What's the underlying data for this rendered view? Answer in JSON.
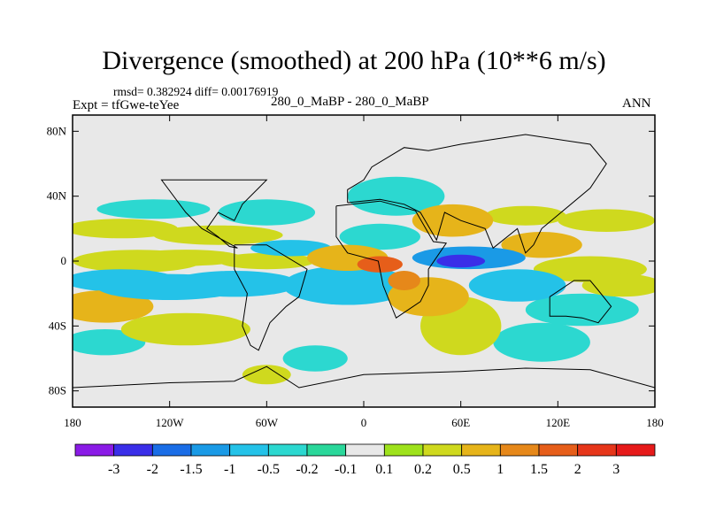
{
  "chart_data": {
    "type": "heatmap",
    "title": "Divergence (smoothed) at 200 hPa (10**6 m/s)",
    "stats_text": "rmsd= 0.382924 diff= 0.00176919",
    "experiment_text": "Expt = tfGwe-teYee",
    "subtitle": "280_0_MaBP - 280_0_MaBP",
    "season": "ANN",
    "x_range": [
      -180,
      180
    ],
    "y_range": [
      -90,
      90
    ],
    "x_ticks": [
      {
        "value": -180,
        "label": "180"
      },
      {
        "value": -120,
        "label": "120W"
      },
      {
        "value": -60,
        "label": "60W"
      },
      {
        "value": 0,
        "label": "0"
      },
      {
        "value": 60,
        "label": "60E"
      },
      {
        "value": 120,
        "label": "120E"
      },
      {
        "value": 180,
        "label": "180"
      }
    ],
    "y_ticks": [
      {
        "value": 80,
        "label": "80N"
      },
      {
        "value": 40,
        "label": "40N"
      },
      {
        "value": 0,
        "label": "0"
      },
      {
        "value": -40,
        "label": "40S"
      },
      {
        "value": -80,
        "label": "80S"
      }
    ],
    "colorbar": {
      "levels": [
        "-3",
        "-2",
        "-1.5",
        "-1",
        "-0.5",
        "-0.2",
        "-0.1",
        "0.1",
        "0.2",
        "0.5",
        "1",
        "1.5",
        "2",
        "3"
      ],
      "colors": [
        "#8a1be6",
        "#3a2ee8",
        "#1a6de6",
        "#1a9ae6",
        "#24c2e8",
        "#2cd8d0",
        "#2ad79a",
        "#e8e8e8",
        "#9ee21c",
        "#cfd91e",
        "#e6b41a",
        "#e6881a",
        "#e65e1a",
        "#e6361a",
        "#e61a1a"
      ]
    },
    "contour_blobs": [
      {
        "lon": -140,
        "lat": 0,
        "rlon": 40,
        "rlat": 7,
        "value": 0.4
      },
      {
        "lon": -110,
        "lat": 2,
        "rlon": 35,
        "rlat": 5,
        "value": 0.3
      },
      {
        "lon": -60,
        "lat": 0,
        "rlon": 30,
        "rlat": 5,
        "value": 0.35
      },
      {
        "lon": -150,
        "lat": -12,
        "rlon": 35,
        "rlat": 7,
        "value": -0.6
      },
      {
        "lon": -120,
        "lat": -16,
        "rlon": 45,
        "rlat": 8,
        "value": -0.9
      },
      {
        "lon": -80,
        "lat": -14,
        "rlon": 40,
        "rlat": 8,
        "value": -0.7
      },
      {
        "lon": -160,
        "lat": -28,
        "rlon": 30,
        "rlat": 10,
        "value": 0.6
      },
      {
        "lon": -110,
        "lat": -42,
        "rlon": 40,
        "rlat": 10,
        "value": 0.5
      },
      {
        "lon": -160,
        "lat": -50,
        "rlon": 25,
        "rlat": 8,
        "value": -0.3
      },
      {
        "lon": -130,
        "lat": 32,
        "rlon": 35,
        "rlat": 6,
        "value": -0.4
      },
      {
        "lon": -150,
        "lat": 20,
        "rlon": 35,
        "rlat": 6,
        "value": 0.4
      },
      {
        "lon": -90,
        "lat": 16,
        "rlon": 40,
        "rlat": 6,
        "value": 0.4
      },
      {
        "lon": -60,
        "lat": 30,
        "rlon": 30,
        "rlat": 8,
        "value": -0.4
      },
      {
        "lon": -45,
        "lat": 8,
        "rlon": 25,
        "rlat": 5,
        "value": -0.5
      },
      {
        "lon": -10,
        "lat": -15,
        "rlon": 40,
        "rlat": 12,
        "value": -0.5
      },
      {
        "lon": -10,
        "lat": 2,
        "rlon": 25,
        "rlat": 8,
        "value": 0.9
      },
      {
        "lon": 10,
        "lat": -2,
        "rlon": 14,
        "rlat": 5,
        "value": 1.6
      },
      {
        "lon": 25,
        "lat": -12,
        "rlon": 10,
        "rlat": 6,
        "value": 1.2
      },
      {
        "lon": 10,
        "lat": 15,
        "rlon": 25,
        "rlat": 8,
        "value": -0.4
      },
      {
        "lon": 20,
        "lat": 40,
        "rlon": 30,
        "rlat": 12,
        "value": -0.4
      },
      {
        "lon": 55,
        "lat": 25,
        "rlon": 25,
        "rlat": 10,
        "value": 0.8
      },
      {
        "lon": 65,
        "lat": 2,
        "rlon": 35,
        "rlat": 7,
        "value": -1.0
      },
      {
        "lon": 60,
        "lat": 0,
        "rlon": 15,
        "rlat": 4,
        "value": -2.0
      },
      {
        "lon": 40,
        "lat": -22,
        "rlon": 25,
        "rlat": 12,
        "value": 0.6
      },
      {
        "lon": 60,
        "lat": -40,
        "rlon": 25,
        "rlat": 18,
        "value": 0.5
      },
      {
        "lon": 95,
        "lat": -15,
        "rlon": 30,
        "rlat": 10,
        "value": -0.5
      },
      {
        "lon": 110,
        "lat": 10,
        "rlon": 25,
        "rlat": 8,
        "value": 0.6
      },
      {
        "lon": 140,
        "lat": -5,
        "rlon": 35,
        "rlat": 8,
        "value": 0.4
      },
      {
        "lon": 150,
        "lat": 25,
        "rlon": 30,
        "rlat": 7,
        "value": 0.4
      },
      {
        "lon": 135,
        "lat": -30,
        "rlon": 35,
        "rlat": 10,
        "value": -0.4
      },
      {
        "lon": 160,
        "lat": -15,
        "rlon": 25,
        "rlat": 7,
        "value": 0.5
      },
      {
        "lon": 110,
        "lat": -50,
        "rlon": 30,
        "rlat": 12,
        "value": -0.3
      },
      {
        "lon": 100,
        "lat": 28,
        "rlon": 25,
        "rlat": 6,
        "value": 0.3
      },
      {
        "lon": -60,
        "lat": -70,
        "rlon": 15,
        "rlat": 6,
        "value": 0.3
      },
      {
        "lon": -30,
        "lat": -60,
        "rlon": 20,
        "rlat": 8,
        "value": -0.3
      }
    ]
  }
}
